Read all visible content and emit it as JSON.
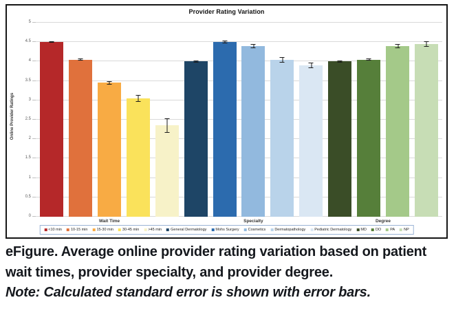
{
  "chart": {
    "title": "Provider Rating Variation",
    "y_axis_title": "Online Provider Ratings"
  },
  "chart_data": {
    "type": "bar",
    "title": "Provider Rating Variation",
    "xlabel": "",
    "ylabel": "Online Provider Ratings",
    "ylim": [
      0,
      5
    ],
    "ytick_step": 0.5,
    "grid": true,
    "gridline_color": "#d9d9d9",
    "legend_position": "bottom",
    "groups": [
      "Wait Time",
      "Specialty",
      "Degree"
    ],
    "bars": [
      {
        "label": "<10 min",
        "group": "Wait Time",
        "value": 4.5,
        "error": 0.02,
        "color": "#b52829"
      },
      {
        "label": "10-15 min",
        "group": "Wait Time",
        "value": 4.05,
        "error": 0.02,
        "color": "#e0713c"
      },
      {
        "label": "15-30 min",
        "group": "Wait Time",
        "value": 3.45,
        "error": 0.04,
        "color": "#f8ab44"
      },
      {
        "label": "30-45 min",
        "group": "Wait Time",
        "value": 3.05,
        "error": 0.08,
        "color": "#fae25b"
      },
      {
        "label": ">45 min",
        "group": "Wait Time",
        "value": 2.35,
        "error": 0.18,
        "color": "#f7f2c8"
      },
      {
        "label": "General Dermatology",
        "group": "Specialty",
        "value": 4.0,
        "error": 0.02,
        "color": "#1e4566"
      },
      {
        "label": "Mohs Surgery",
        "group": "Specialty",
        "value": 4.5,
        "error": 0.04,
        "color": "#2c6bae"
      },
      {
        "label": "Cosmetics",
        "group": "Specialty",
        "value": 4.4,
        "error": 0.05,
        "color": "#92b9de"
      },
      {
        "label": "Dermatopathology",
        "group": "Specialty",
        "value": 4.05,
        "error": 0.07,
        "color": "#b9d3ea"
      },
      {
        "label": "Pediatric Dermatology",
        "group": "Specialty",
        "value": 3.9,
        "error": 0.07,
        "color": "#dae7f3"
      },
      {
        "label": "MD",
        "group": "Degree",
        "value": 4.0,
        "error": 0.02,
        "color": "#3a4d27"
      },
      {
        "label": "DO",
        "group": "Degree",
        "value": 4.05,
        "error": 0.03,
        "color": "#567f3a"
      },
      {
        "label": "PA",
        "group": "Degree",
        "value": 4.4,
        "error": 0.05,
        "color": "#a4c989"
      },
      {
        "label": "NP",
        "group": "Degree",
        "value": 4.45,
        "error": 0.07,
        "color": "#c7ddb5"
      }
    ]
  },
  "caption": {
    "figure_text": "eFigure. Average online provider rating variation based on patient wait times, provider specialty, and provider degree.",
    "note_text": "Note: Calculated standard error is shown with error bars."
  }
}
